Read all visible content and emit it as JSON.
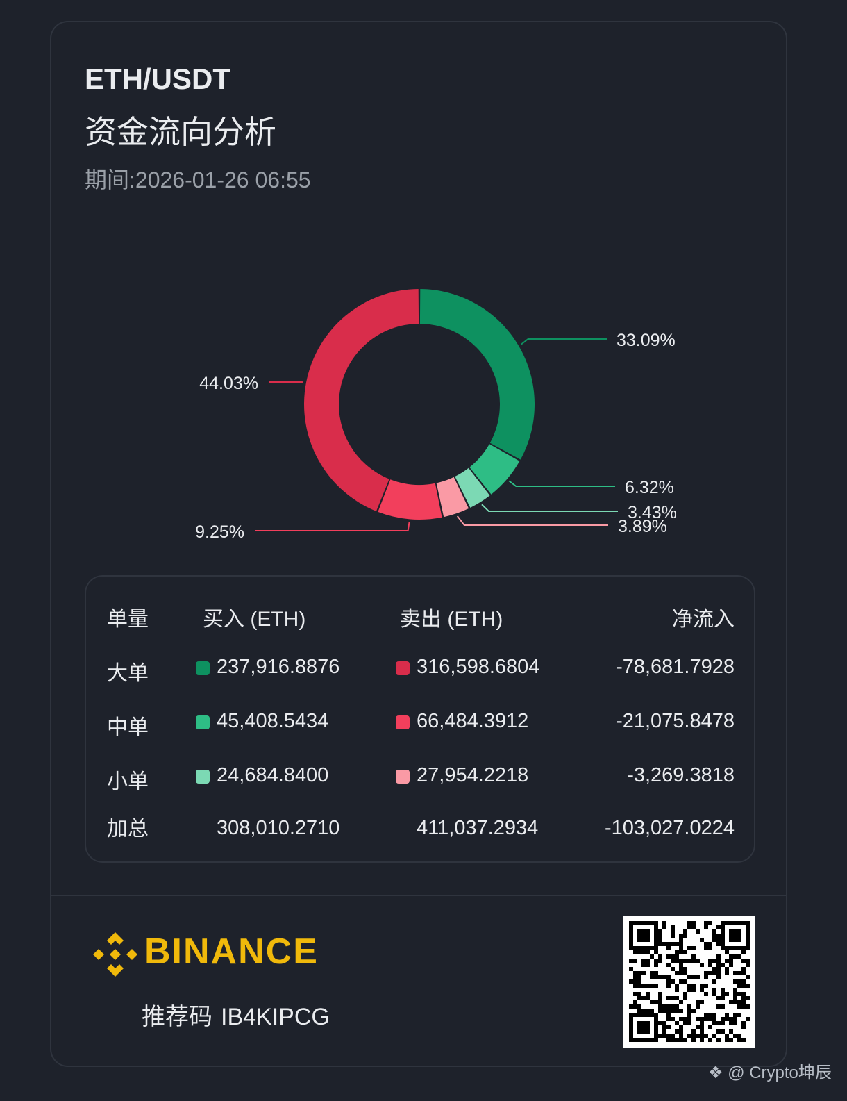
{
  "header": {
    "pair": "ETH/USDT",
    "title": "资金流向分析",
    "period_label": "期间:",
    "period_value": "2026-01-26 06:55"
  },
  "colors": {
    "big_buy": "#0e9160",
    "mid_buy": "#2ebd85",
    "small_buy": "#7cd9b4",
    "big_sell": "#d92d4b",
    "mid_sell": "#f23f5c",
    "small_sell": "#fa9aa5",
    "accent": "#f0b90b"
  },
  "chart_data": {
    "type": "pie",
    "donut": true,
    "slices": [
      {
        "key": "big_buy",
        "value": 33.09,
        "label": "33.09%"
      },
      {
        "key": "mid_buy",
        "value": 6.32,
        "label": "6.32%"
      },
      {
        "key": "small_buy",
        "value": 3.43,
        "label": "3.43%"
      },
      {
        "key": "small_sell",
        "value": 3.89,
        "label": "3.89%"
      },
      {
        "key": "mid_sell",
        "value": 9.25,
        "label": "9.25%"
      },
      {
        "key": "big_sell",
        "value": 44.03,
        "label": "44.03%"
      }
    ]
  },
  "table": {
    "headers": {
      "size": "单量",
      "buy": "买入 (ETH)",
      "sell": "卖出 (ETH)",
      "net": "净流入"
    },
    "rows": [
      {
        "label": "大单",
        "buy": "237,916.8876",
        "sell": "316,598.6804",
        "net": "-78,681.7928"
      },
      {
        "label": "中单",
        "buy": "45,408.5434",
        "sell": "66,484.3912",
        "net": "-21,075.8478"
      },
      {
        "label": "小单",
        "buy": "24,684.8400",
        "sell": "27,954.2218",
        "net": "-3,269.3818"
      },
      {
        "label": "加总",
        "buy": "308,010.2710",
        "sell": "411,037.2934",
        "net": "-103,027.0224"
      }
    ]
  },
  "footer": {
    "brand": "BINANCE",
    "referral_label": "推荐码",
    "referral_code": "IB4KIPCG",
    "watermark": "@ Crypto坤辰"
  }
}
